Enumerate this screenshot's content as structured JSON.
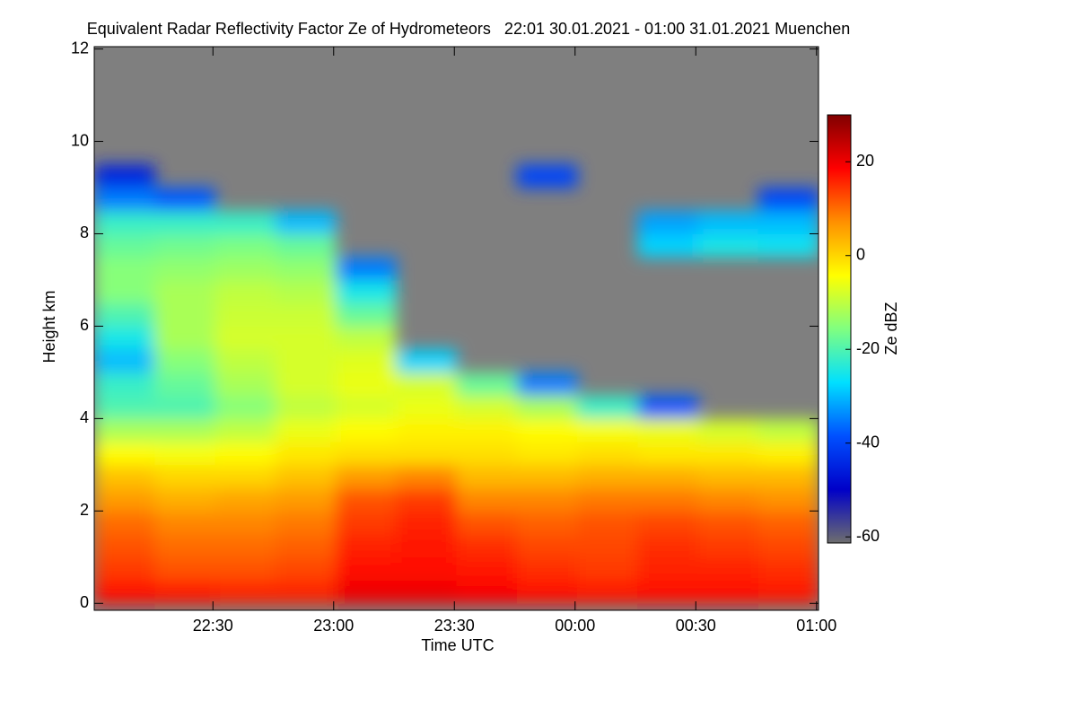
{
  "chart_data": {
    "type": "heatmap",
    "title": "Equivalent Radar Reflectivity Factor Ze of Hydrometeors   22:01 30.01.2021 - 01:00 31.01.2021 Muenchen",
    "x_label": "Time UTC",
    "y_label": "Height km",
    "colorbar_label": "Ze dBZ",
    "xlim": [
      0.5,
      180.5
    ],
    "xticks": [
      {
        "value": 30,
        "label": "22:30"
      },
      {
        "value": 60,
        "label": "23:00"
      },
      {
        "value": 90,
        "label": "23:30"
      },
      {
        "value": 120,
        "label": "00:00"
      },
      {
        "value": 150,
        "label": "00:30"
      },
      {
        "value": 180,
        "label": "01:00"
      }
    ],
    "ylim": [
      -0.15,
      12.05
    ],
    "yticks": [
      0,
      2,
      4,
      6,
      8,
      10,
      12
    ],
    "clim": [
      -61.3,
      30
    ],
    "cticks": [
      -60,
      -40,
      -20,
      0,
      20
    ],
    "colorscale": [
      "#6e6e6e",
      "#0000c8",
      "#0050ff",
      "#00e0ff",
      "#80ff80",
      "#ffff00",
      "#ff9000",
      "#ff0000",
      "#800000"
    ],
    "background": "#7f7f7f",
    "xbins": [
      0.5,
      15.5,
      30.5,
      45.5,
      60.5,
      75.5,
      90.5,
      105.5,
      120.5,
      135.5,
      150.5,
      165.5,
      180.5
    ],
    "ybins": [
      0,
      0.5,
      1,
      1.5,
      2,
      2.5,
      3,
      3.5,
      4,
      4.5,
      5,
      5.5,
      6,
      6.5,
      7,
      7.5,
      8,
      8.5,
      9,
      9.5,
      10,
      10.5,
      11,
      11.5,
      12
    ],
    "z": [
      [
        18,
        17,
        16,
        16,
        20,
        20,
        19,
        18,
        17,
        18,
        18,
        17
      ],
      [
        14,
        12,
        12,
        13,
        18,
        18,
        17,
        15,
        14,
        16,
        16,
        15
      ],
      [
        12,
        10,
        10,
        11,
        16,
        17,
        15,
        13,
        13,
        15,
        14,
        13
      ],
      [
        10,
        8,
        8,
        9,
        14,
        16,
        12,
        11,
        12,
        13,
        12,
        11
      ],
      [
        6,
        4,
        5,
        6,
        12,
        14,
        8,
        8,
        9,
        9,
        8,
        7
      ],
      [
        2,
        0,
        0,
        2,
        6,
        8,
        3,
        3,
        4,
        4,
        3,
        3
      ],
      [
        -4,
        -5,
        -4,
        -2,
        -1,
        -1,
        -1,
        -2,
        -1,
        -2,
        -2,
        -3
      ],
      [
        -12,
        -12,
        -10,
        -6,
        -4,
        -3,
        -3,
        -4,
        -5,
        -6,
        -8,
        -10
      ],
      [
        -20,
        -20,
        -15,
        -10,
        -8,
        -6,
        -8,
        -12,
        -22,
        -38,
        null,
        null
      ],
      [
        -22,
        -18,
        -12,
        -8,
        -6,
        -8,
        -18,
        -35,
        null,
        null,
        null,
        null
      ],
      [
        -30,
        -15,
        -10,
        -8,
        -7,
        -28,
        null,
        null,
        null,
        null,
        null,
        null
      ],
      [
        -25,
        -12,
        -8,
        -8,
        -10,
        null,
        null,
        null,
        null,
        null,
        null,
        null
      ],
      [
        -20,
        -12,
        -9,
        -9,
        -18,
        null,
        null,
        null,
        null,
        null,
        null,
        null
      ],
      [
        -15,
        -12,
        -10,
        -11,
        -25,
        null,
        null,
        null,
        null,
        null,
        null,
        null
      ],
      [
        -15,
        -14,
        -13,
        -14,
        -35,
        null,
        null,
        null,
        null,
        null,
        null,
        null
      ],
      [
        -18,
        -17,
        -16,
        -18,
        null,
        null,
        null,
        null,
        null,
        -28,
        -25,
        -26
      ],
      [
        -22,
        -22,
        -22,
        -30,
        null,
        null,
        null,
        null,
        null,
        -32,
        -30,
        -30
      ],
      [
        -35,
        -38,
        null,
        null,
        null,
        null,
        null,
        null,
        null,
        null,
        null,
        -40
      ],
      [
        -45,
        null,
        null,
        null,
        null,
        null,
        null,
        -40,
        null,
        null,
        null,
        null
      ],
      [
        null,
        null,
        null,
        null,
        null,
        null,
        null,
        null,
        null,
        null,
        null,
        null
      ],
      [
        null,
        null,
        null,
        null,
        null,
        null,
        null,
        null,
        null,
        null,
        null,
        null
      ],
      [
        null,
        null,
        null,
        null,
        null,
        null,
        null,
        null,
        null,
        null,
        null,
        null
      ],
      [
        null,
        null,
        null,
        null,
        null,
        null,
        null,
        null,
        null,
        null,
        null,
        null
      ],
      [
        null,
        null,
        null,
        null,
        null,
        null,
        null,
        null,
        null,
        null,
        null,
        null
      ]
    ]
  }
}
